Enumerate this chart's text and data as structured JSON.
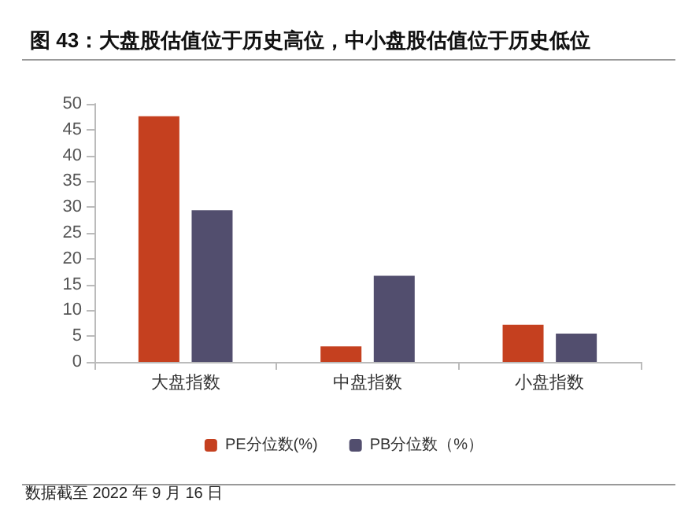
{
  "chart_data": {
    "type": "bar",
    "title": "图 43：大盘股估值位于历史高位，中小盘股估值位于历史低位",
    "categories": [
      "大盘指数",
      "中盘指数",
      "小盘指数"
    ],
    "series": [
      {
        "name": "PE分位数(%)",
        "color": "#c5401f",
        "values": [
          47.6,
          3.0,
          7.2
        ]
      },
      {
        "name": "PB分位数（%）",
        "color": "#524e6e",
        "values": [
          29.4,
          16.7,
          5.5
        ]
      }
    ],
    "ylim": [
      0,
      50
    ],
    "yticks": [
      0,
      5,
      10,
      15,
      20,
      25,
      30,
      35,
      40,
      45,
      50
    ],
    "grid": false,
    "legend": "bottom",
    "annotations": [
      "数据截至 2022 年 9 月 16 日"
    ]
  }
}
